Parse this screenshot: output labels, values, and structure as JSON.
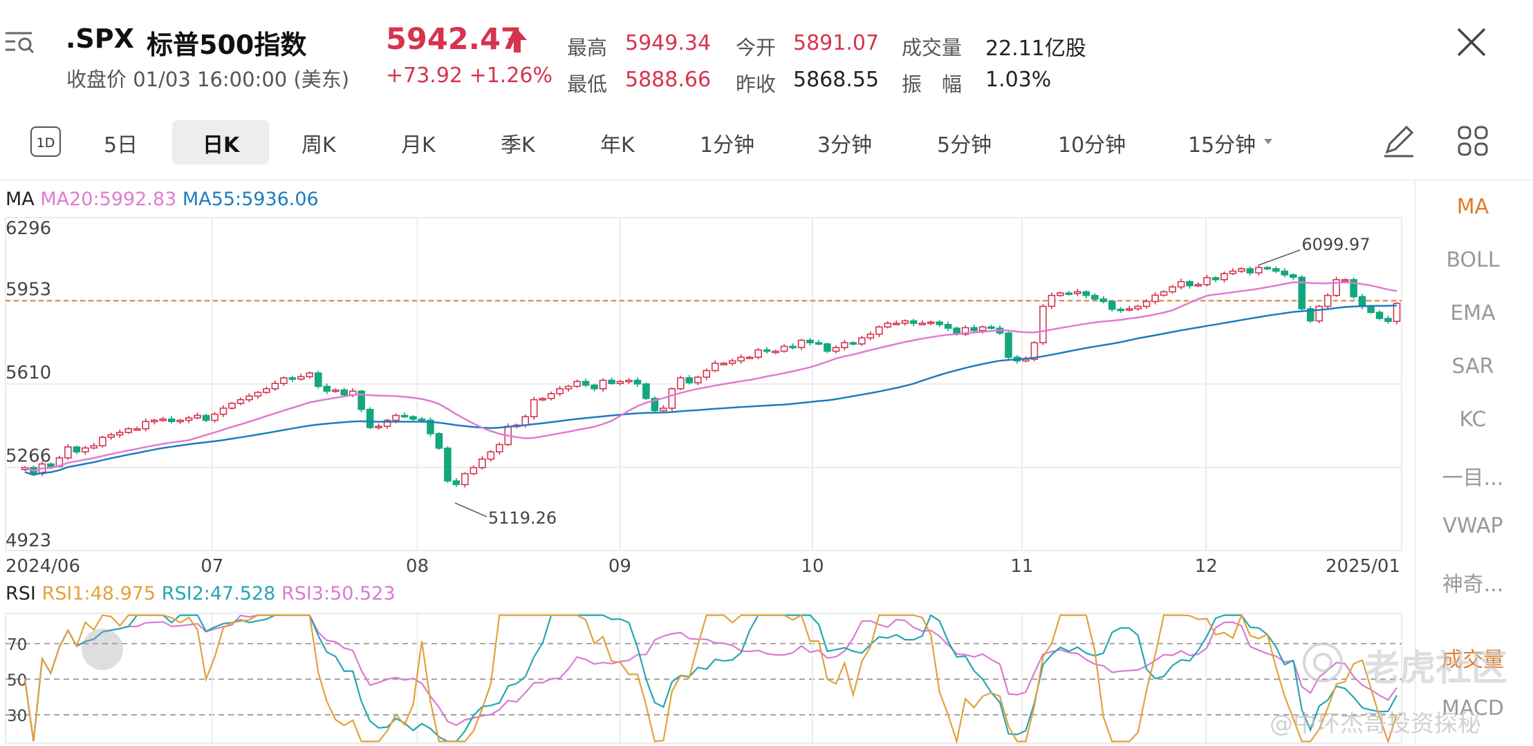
{
  "header": {
    "symbol": ".SPX",
    "name": "标普500指数",
    "subtitle": "收盘价 01/03 16:00:00 (美东)",
    "price": "5942.47",
    "change": "+73.92",
    "change_pct": "+1.26%",
    "stats": {
      "high_label": "最高",
      "high": "5949.34",
      "open_label": "今开",
      "open": "5891.07",
      "volume_label": "成交量",
      "volume": "22.11亿股",
      "low_label": "最低",
      "low": "5888.66",
      "prev_label": "昨收",
      "prev": "5868.55",
      "amp_label": "振　幅",
      "amp": "1.03%"
    }
  },
  "toolbar": {
    "tab_1d": "1D",
    "tabs": [
      "5日",
      "日K",
      "周K",
      "月K",
      "季K",
      "年K",
      "1分钟",
      "3分钟",
      "5分钟",
      "10分钟",
      "15分钟"
    ],
    "selected": "日K"
  },
  "side_menu": [
    "MA",
    "BOLL",
    "EMA",
    "SAR",
    "KC",
    "一目...",
    "VWAP",
    "神奇...",
    "成交量",
    "MACD"
  ],
  "watermark": {
    "brand": "老虎社区",
    "author": "@中环杰哥投资探秘"
  },
  "colors": {
    "up": "#d6334d",
    "down": "#13a77e",
    "ma20": "#e07ad3",
    "ma55": "#1c7cc0",
    "rsi1": "#e3a13b",
    "rsi2": "#24a5b4",
    "rsi3": "#d87bd3",
    "accent": "#e07b2a"
  },
  "chart_data": [
    {
      "type": "candlestick",
      "title": "",
      "indicator_label": "MA",
      "legend": [
        {
          "name": "MA20",
          "value": "5992.83"
        },
        {
          "name": "MA55",
          "value": "5936.06"
        }
      ],
      "y_ticks": [
        "6296",
        "5953",
        "5610",
        "5266",
        "4923"
      ],
      "ylim": [
        4923,
        6296
      ],
      "x_ticks": [
        "2024/06",
        "07",
        "08",
        "09",
        "10",
        "11",
        "12",
        "2025/01"
      ],
      "current_line": 5953,
      "annotations": [
        {
          "text": "6099.97",
          "value": 6099.97
        },
        {
          "text": "5119.26",
          "value": 5119.26
        }
      ],
      "closes": [
        5265,
        5240,
        5280,
        5270,
        5305,
        5350,
        5330,
        5346,
        5355,
        5390,
        5400,
        5410,
        5425,
        5425,
        5455,
        5460,
        5465,
        5455,
        5460,
        5470,
        5480,
        5460,
        5485,
        5510,
        5530,
        5545,
        5560,
        5575,
        5590,
        5612,
        5635,
        5630,
        5640,
        5655,
        5600,
        5580,
        5585,
        5565,
        5580,
        5505,
        5430,
        5435,
        5460,
        5480,
        5475,
        5465,
        5460,
        5405,
        5345,
        5210,
        5195,
        5240,
        5265,
        5300,
        5330,
        5360,
        5435,
        5440,
        5475,
        5545,
        5550,
        5570,
        5590,
        5600,
        5620,
        5605,
        5590,
        5625,
        5612,
        5620,
        5625,
        5610,
        5550,
        5500,
        5510,
        5590,
        5635,
        5615,
        5638,
        5665,
        5695,
        5695,
        5705,
        5720,
        5720,
        5750,
        5745,
        5745,
        5765,
        5760,
        5790,
        5780,
        5775,
        5745,
        5760,
        5780,
        5775,
        5800,
        5815,
        5845,
        5860,
        5860,
        5870,
        5860,
        5860,
        5865,
        5855,
        5840,
        5815,
        5842,
        5830,
        5845,
        5840,
        5820,
        5720,
        5705,
        5712,
        5780,
        5930,
        5975,
        5985,
        5983,
        5990,
        5975,
        5960,
        5950,
        5918,
        5915,
        5920,
        5930,
        5950,
        5976,
        5990,
        6010,
        6032,
        6015,
        6020,
        6048,
        6040,
        6065,
        6075,
        6085,
        6068,
        6090,
        6085,
        6075,
        6060,
        6050,
        5920,
        5870,
        5930,
        5975,
        6040,
        6040,
        5970,
        5930,
        5905,
        5880,
        5868,
        5942
      ]
    },
    {
      "type": "line",
      "title": "",
      "indicator_label": "RSI",
      "series": [
        {
          "name": "RSI1",
          "value": "48.975"
        },
        {
          "name": "RSI2",
          "value": "47.528"
        },
        {
          "name": "RSI3",
          "value": "50.523"
        }
      ],
      "y_ticks": [
        "70",
        "50",
        "30"
      ],
      "ylim": [
        14,
        87
      ]
    }
  ]
}
